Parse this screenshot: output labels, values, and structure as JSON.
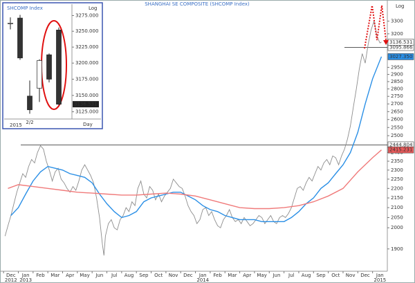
{
  "chart_data": [
    {
      "type": "line",
      "title": "SHANGHAI SE COMPOSITE (SHCOMP Index)",
      "scale_label": "Log",
      "log_scale": true,
      "grid": false,
      "xlim": [
        -0.1,
        26
      ],
      "ylim": [
        1800,
        3450
      ],
      "yticks": [
        3300,
        3200,
        2950,
        2900,
        2850,
        2800,
        2750,
        2700,
        2650,
        2600,
        2550,
        2500,
        2400,
        2350,
        2300,
        2250,
        2200,
        2150,
        2100,
        2050,
        2000,
        1900
      ],
      "xticks": [
        {
          "value": 0,
          "label": "Dec"
        },
        {
          "value": 1,
          "label": "Jan"
        },
        {
          "value": 2,
          "label": "Feb"
        },
        {
          "value": 3,
          "label": "Mar"
        },
        {
          "value": 4,
          "label": "Apr"
        },
        {
          "value": 5,
          "label": "May"
        },
        {
          "value": 6,
          "label": "Jun"
        },
        {
          "value": 7,
          "label": "Jul"
        },
        {
          "value": 8,
          "label": "Aug"
        },
        {
          "value": 9,
          "label": "Sep"
        },
        {
          "value": 10,
          "label": "Oct"
        },
        {
          "value": 11,
          "label": "Nov"
        },
        {
          "value": 12,
          "label": "Dec"
        },
        {
          "value": 13,
          "label": "Jan"
        },
        {
          "value": 14,
          "label": "Feb"
        },
        {
          "value": 15,
          "label": "Mar"
        },
        {
          "value": 16,
          "label": "Apr"
        },
        {
          "value": 17,
          "label": "May"
        },
        {
          "value": 18,
          "label": "Jun"
        },
        {
          "value": 19,
          "label": "Jul"
        },
        {
          "value": 20,
          "label": "Aug"
        },
        {
          "value": 21,
          "label": "Sep"
        },
        {
          "value": 22,
          "label": "Oct"
        },
        {
          "value": 23,
          "label": "Nov"
        },
        {
          "value": 24,
          "label": "Dec"
        },
        {
          "value": 25,
          "label": "Jan"
        }
      ],
      "x_year_labels": [
        {
          "value": 0,
          "label": "2012"
        },
        {
          "value": 1,
          "label": "2013"
        },
        {
          "value": 13,
          "label": "2014"
        },
        {
          "value": 25,
          "label": "2015"
        }
      ],
      "series": [
        {
          "color": "#8c8c8c",
          "x": [
            0.1,
            0.3,
            0.5,
            0.7,
            0.9,
            1.1,
            1.3,
            1.5,
            1.7,
            1.9,
            2.1,
            2.3,
            2.5,
            2.7,
            2.9,
            3.1,
            3.3,
            3.5,
            3.7,
            3.9,
            4.1,
            4.3,
            4.5,
            4.7,
            4.9,
            5.1,
            5.3,
            5.5,
            5.7,
            5.9,
            6.1,
            6.3,
            6.5,
            6.7,
            6.8,
            6.9,
            7.1,
            7.3,
            7.5,
            7.7,
            7.9,
            8.1,
            8.3,
            8.5,
            8.7,
            8.9,
            9.1,
            9.3,
            9.5,
            9.7,
            9.9,
            10.1,
            10.3,
            10.5,
            10.7,
            10.9,
            11.1,
            11.3,
            11.5,
            11.7,
            11.9,
            12.1,
            12.3,
            12.5,
            12.7,
            12.9,
            13.1,
            13.3,
            13.5,
            13.7,
            13.9,
            14.1,
            14.3,
            14.5,
            14.7,
            14.9,
            15.1,
            15.3,
            15.5,
            15.7,
            15.9,
            16.1,
            16.3,
            16.5,
            16.7,
            16.9,
            17.1,
            17.3,
            17.5,
            17.7,
            17.9,
            18.1,
            18.3,
            18.5,
            18.7,
            18.9,
            19.1,
            19.3,
            19.5,
            19.7,
            19.9,
            20.1,
            20.3,
            20.5,
            20.7,
            20.9,
            21.1,
            21.3,
            21.5,
            21.7,
            21.9,
            22.1,
            22.3,
            22.5,
            22.7,
            22.9,
            23.1,
            23.3,
            23.5,
            23.7,
            23.9,
            24.1,
            24.3,
            24.5,
            24.7,
            24.9,
            25.1,
            25.3,
            25.5,
            25.6
          ],
          "values": [
            1960,
            2010,
            2060,
            2120,
            2180,
            2230,
            2280,
            2260,
            2320,
            2360,
            2340,
            2400,
            2440,
            2420,
            2350,
            2300,
            2240,
            2290,
            2310,
            2250,
            2230,
            2200,
            2180,
            2210,
            2190,
            2240,
            2300,
            2330,
            2300,
            2270,
            2230,
            2150,
            2050,
            1920,
            1870,
            1960,
            2020,
            2040,
            2000,
            1990,
            2040,
            2060,
            2100,
            2080,
            2130,
            2110,
            2200,
            2240,
            2170,
            2150,
            2210,
            2190,
            2140,
            2170,
            2130,
            2160,
            2180,
            2200,
            2250,
            2230,
            2210,
            2200,
            2160,
            2110,
            2080,
            2060,
            2020,
            2040,
            2090,
            2100,
            2060,
            2080,
            2040,
            2010,
            2000,
            2040,
            2060,
            2090,
            2050,
            2030,
            2040,
            2020,
            2050,
            2030,
            2010,
            2020,
            2040,
            2060,
            2050,
            2020,
            2040,
            2060,
            2030,
            2020,
            2050,
            2060,
            2050,
            2070,
            2100,
            2150,
            2200,
            2210,
            2190,
            2230,
            2260,
            2240,
            2280,
            2320,
            2300,
            2340,
            2360,
            2330,
            2380,
            2370,
            2330,
            2380,
            2420,
            2480,
            2560,
            2680,
            2800,
            2940,
            3050,
            2980,
            3120,
            3230,
            3300,
            3180,
            3130,
            3136.531
          ]
        },
        {
          "color": "#2a8fe6",
          "x": [
            0.5,
            1,
            1.5,
            2,
            2.5,
            3,
            3.5,
            4,
            4.5,
            5,
            5.5,
            6,
            6.5,
            7,
            7.5,
            8,
            8.5,
            9,
            9.5,
            10,
            10.5,
            11,
            11.5,
            12,
            12.5,
            13,
            13.5,
            14,
            14.5,
            15,
            15.5,
            16,
            16.5,
            17,
            17.5,
            18,
            18.5,
            19,
            19.5,
            20,
            20.5,
            21,
            21.5,
            22,
            22.5,
            23,
            23.5,
            24,
            24.5,
            25,
            25.6
          ],
          "values": [
            2060,
            2100,
            2170,
            2240,
            2290,
            2320,
            2310,
            2300,
            2280,
            2270,
            2260,
            2230,
            2170,
            2120,
            2080,
            2050,
            2060,
            2080,
            2130,
            2150,
            2160,
            2170,
            2180,
            2180,
            2160,
            2140,
            2110,
            2090,
            2080,
            2060,
            2050,
            2040,
            2040,
            2040,
            2030,
            2030,
            2030,
            2030,
            2050,
            2080,
            2120,
            2150,
            2200,
            2230,
            2280,
            2330,
            2400,
            2520,
            2700,
            2870,
            3027.35
          ]
        },
        {
          "color": "#f07a7a",
          "x": [
            0.3,
            1,
            2,
            3,
            4,
            5,
            6,
            7,
            8,
            9,
            10,
            11,
            12,
            13,
            14,
            15,
            16,
            17,
            18,
            19,
            20,
            21,
            22,
            23,
            24,
            25,
            25.6
          ],
          "values": [
            2200,
            2220,
            2210,
            2200,
            2190,
            2180,
            2175,
            2170,
            2165,
            2165,
            2170,
            2175,
            2170,
            2160,
            2140,
            2120,
            2100,
            2095,
            2095,
            2100,
            2110,
            2130,
            2160,
            2200,
            2290,
            2370,
            2415.231
          ]
        }
      ],
      "reference_lines": [
        {
          "value": 2444.804,
          "label": "2444.804"
        },
        {
          "value": 3095.866,
          "label": "3095.866"
        }
      ],
      "value_tags": [
        {
          "value": 3136.531,
          "label": "3136.531",
          "color": "#ffffff"
        },
        {
          "value": 3027.35,
          "label": "3027.350",
          "color": "#2a8fe6"
        },
        {
          "value": 2415.231,
          "label": "2415.231",
          "color": "#e85b5b"
        }
      ]
    },
    {
      "type": "candlestick",
      "title": "SHCOMP Index",
      "scale_label": "Log",
      "log_scale": true,
      "x_year_label": "2015",
      "x_unit": "Day",
      "ylim": [
        3114,
        3291
      ],
      "yticks": [
        {
          "value": 3275,
          "label": "3275.000"
        },
        {
          "value": 3250,
          "label": "3250.000"
        },
        {
          "value": 3225,
          "label": "3225.000"
        },
        {
          "value": 3200,
          "label": "3200.000"
        },
        {
          "value": 3175,
          "label": "3175.000"
        },
        {
          "value": 3150,
          "label": "3150.000"
        },
        {
          "value": 3125,
          "label": "3125.000"
        }
      ],
      "categories": [
        null,
        null,
        "2/2",
        null,
        null,
        null
      ],
      "open": [
        3262,
        3271,
        3149,
        3161,
        3213,
        3252
      ],
      "high": [
        3272,
        3276,
        3173,
        3206,
        3215,
        3256
      ],
      "low": [
        3253,
        3205,
        3122,
        3140,
        3170,
        3135
      ],
      "close": [
        3263,
        3208,
        3128,
        3204,
        3175,
        3136.531
      ],
      "value_tag": {
        "value": 3136.531,
        "label": "3136.531"
      }
    }
  ]
}
